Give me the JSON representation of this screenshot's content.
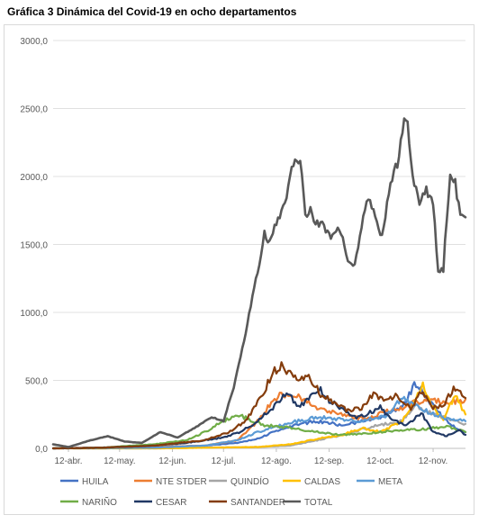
{
  "title": "Gráfica 3 Dinámica del Covid-19 en ocho departamentos",
  "chart_data": {
    "type": "line",
    "title": "Gráfica 3 Dinámica del Covid-19 en ocho departamentos",
    "xlabel": "",
    "ylabel": "",
    "ylim": [
      0,
      3000
    ],
    "y_ticks": [
      "0,0",
      "500,0",
      "1000,0",
      "1500,0",
      "2000,0",
      "2500,0",
      "3000,0"
    ],
    "x_ticks": [
      "12-abr.",
      "12-may.",
      "12-jun.",
      "12-jul.",
      "12-ago.",
      "12-sep.",
      "12-oct.",
      "12-nov."
    ],
    "x_range": [
      "2020-04-03",
      "2020-12-01"
    ],
    "grid": "horizontal",
    "legend_position": "bottom",
    "series": [
      {
        "name": "HUILA",
        "color": "#4472C4",
        "x": [
          "2020-04-03",
          "2020-05-01",
          "2020-06-01",
          "2020-07-01",
          "2020-07-20",
          "2020-08-01",
          "2020-08-12",
          "2020-08-25",
          "2020-09-05",
          "2020-09-20",
          "2020-10-01",
          "2020-10-12",
          "2020-10-25",
          "2020-11-01",
          "2020-11-05",
          "2020-11-12",
          "2020-11-20",
          "2020-11-27",
          "2020-12-01"
        ],
        "y": [
          0,
          5,
          10,
          20,
          40,
          70,
          130,
          180,
          200,
          170,
          200,
          230,
          300,
          470,
          440,
          310,
          200,
          140,
          120
        ]
      },
      {
        "name": "NTE STDER",
        "color": "#ED7D31",
        "x": [
          "2020-04-03",
          "2020-05-01",
          "2020-06-01",
          "2020-07-01",
          "2020-07-20",
          "2020-08-01",
          "2020-08-08",
          "2020-08-15",
          "2020-08-25",
          "2020-09-05",
          "2020-09-15",
          "2020-09-25",
          "2020-10-05",
          "2020-10-15",
          "2020-10-25",
          "2020-11-01",
          "2020-11-10",
          "2020-11-20",
          "2020-11-27",
          "2020-12-01"
        ],
        "y": [
          0,
          5,
          10,
          20,
          60,
          200,
          320,
          400,
          380,
          300,
          260,
          230,
          220,
          270,
          300,
          340,
          360,
          340,
          350,
          360
        ]
      },
      {
        "name": "QUINDÍO",
        "color": "#A5A5A5",
        "x": [
          "2020-04-03",
          "2020-06-01",
          "2020-07-01",
          "2020-08-01",
          "2020-08-20",
          "2020-09-05",
          "2020-09-20",
          "2020-10-01",
          "2020-10-15",
          "2020-10-25",
          "2020-11-01",
          "2020-11-10",
          "2020-11-20",
          "2020-12-01"
        ],
        "y": [
          0,
          0,
          5,
          10,
          20,
          60,
          100,
          140,
          180,
          200,
          320,
          260,
          220,
          180
        ]
      },
      {
        "name": "CALDAS",
        "color": "#FFC000",
        "x": [
          "2020-04-03",
          "2020-06-01",
          "2020-07-01",
          "2020-08-01",
          "2020-08-20",
          "2020-09-05",
          "2020-09-20",
          "2020-10-01",
          "2020-10-12",
          "2020-10-25",
          "2020-11-01",
          "2020-11-06",
          "2020-11-12",
          "2020-11-18",
          "2020-11-25",
          "2020-12-01"
        ],
        "y": [
          0,
          0,
          5,
          10,
          30,
          70,
          100,
          150,
          120,
          200,
          350,
          460,
          300,
          220,
          390,
          250
        ]
      },
      {
        "name": "META",
        "color": "#5B9BD5",
        "x": [
          "2020-04-03",
          "2020-06-01",
          "2020-07-01",
          "2020-07-20",
          "2020-08-01",
          "2020-08-20",
          "2020-09-05",
          "2020-09-20",
          "2020-10-01",
          "2020-10-15",
          "2020-10-25",
          "2020-11-01",
          "2020-11-10",
          "2020-11-20",
          "2020-12-01"
        ],
        "y": [
          0,
          5,
          20,
          60,
          120,
          190,
          230,
          210,
          200,
          240,
          370,
          320,
          260,
          220,
          200
        ]
      },
      {
        "name": "NARIÑO",
        "color": "#70AD47",
        "x": [
          "2020-04-03",
          "2020-05-01",
          "2020-06-01",
          "2020-06-20",
          "2020-07-01",
          "2020-07-12",
          "2020-07-20",
          "2020-07-28",
          "2020-08-05",
          "2020-08-20",
          "2020-09-05",
          "2020-09-20",
          "2020-10-05",
          "2020-10-20",
          "2020-11-05",
          "2020-11-20",
          "2020-12-01"
        ],
        "y": [
          0,
          5,
          30,
          60,
          120,
          200,
          250,
          210,
          170,
          150,
          120,
          100,
          110,
          130,
          140,
          160,
          120
        ]
      },
      {
        "name": "CESAR",
        "color": "#203864",
        "x": [
          "2020-04-03",
          "2020-05-01",
          "2020-06-01",
          "2020-06-20",
          "2020-07-01",
          "2020-07-12",
          "2020-07-22",
          "2020-08-01",
          "2020-08-10",
          "2020-08-18",
          "2020-08-25",
          "2020-09-01",
          "2020-09-06",
          "2020-09-12",
          "2020-09-20",
          "2020-09-28",
          "2020-10-05",
          "2020-10-12",
          "2020-10-20",
          "2020-10-28",
          "2020-11-05",
          "2020-11-12",
          "2020-11-20",
          "2020-11-27",
          "2020-12-01"
        ],
        "y": [
          0,
          5,
          20,
          40,
          60,
          80,
          120,
          200,
          300,
          420,
          300,
          380,
          440,
          350,
          290,
          220,
          260,
          300,
          200,
          170,
          260,
          120,
          90,
          140,
          100
        ]
      },
      {
        "name": "SANTANDER",
        "color": "#843C0C",
        "x": [
          "2020-04-03",
          "2020-05-01",
          "2020-06-01",
          "2020-07-01",
          "2020-07-15",
          "2020-07-25",
          "2020-08-01",
          "2020-08-05",
          "2020-08-10",
          "2020-08-15",
          "2020-08-20",
          "2020-08-26",
          "2020-09-01",
          "2020-09-08",
          "2020-09-15",
          "2020-09-22",
          "2020-10-01",
          "2020-10-08",
          "2020-10-15",
          "2020-10-22",
          "2020-10-30",
          "2020-11-05",
          "2020-11-12",
          "2020-11-18",
          "2020-11-24",
          "2020-11-28",
          "2020-12-01"
        ],
        "y": [
          0,
          5,
          20,
          60,
          120,
          200,
          340,
          420,
          560,
          600,
          560,
          500,
          520,
          380,
          340,
          280,
          290,
          400,
          350,
          390,
          300,
          420,
          300,
          310,
          450,
          420,
          370
        ]
      },
      {
        "name": "TOTAL",
        "color": "#595959",
        "x": [
          "2020-04-03",
          "2020-04-12",
          "2020-04-25",
          "2020-05-05",
          "2020-05-15",
          "2020-05-25",
          "2020-06-05",
          "2020-06-15",
          "2020-06-25",
          "2020-07-05",
          "2020-07-12",
          "2020-07-18",
          "2020-07-25",
          "2020-08-01",
          "2020-08-05",
          "2020-08-08",
          "2020-08-12",
          "2020-08-18",
          "2020-08-22",
          "2020-08-26",
          "2020-08-29",
          "2020-09-01",
          "2020-09-04",
          "2020-09-08",
          "2020-09-13",
          "2020-09-18",
          "2020-09-23",
          "2020-09-27",
          "2020-10-01",
          "2020-10-05",
          "2020-10-09",
          "2020-10-13",
          "2020-10-18",
          "2020-10-22",
          "2020-10-26",
          "2020-10-28",
          "2020-10-31",
          "2020-11-04",
          "2020-11-08",
          "2020-11-12",
          "2020-11-15",
          "2020-11-18",
          "2020-11-20",
          "2020-11-22",
          "2020-11-25",
          "2020-11-28",
          "2020-12-01"
        ],
        "y": [
          30,
          10,
          60,
          90,
          50,
          40,
          120,
          80,
          150,
          230,
          200,
          450,
          850,
          1300,
          1580,
          1520,
          1650,
          1850,
          2100,
          2130,
          1700,
          1750,
          1650,
          1650,
          1550,
          1620,
          1400,
          1350,
          1650,
          1850,
          1700,
          1550,
          1950,
          2100,
          2430,
          2400,
          2000,
          1820,
          1900,
          1800,
          1300,
          1320,
          1700,
          2000,
          1950,
          1700,
          1700
        ]
      }
    ]
  }
}
